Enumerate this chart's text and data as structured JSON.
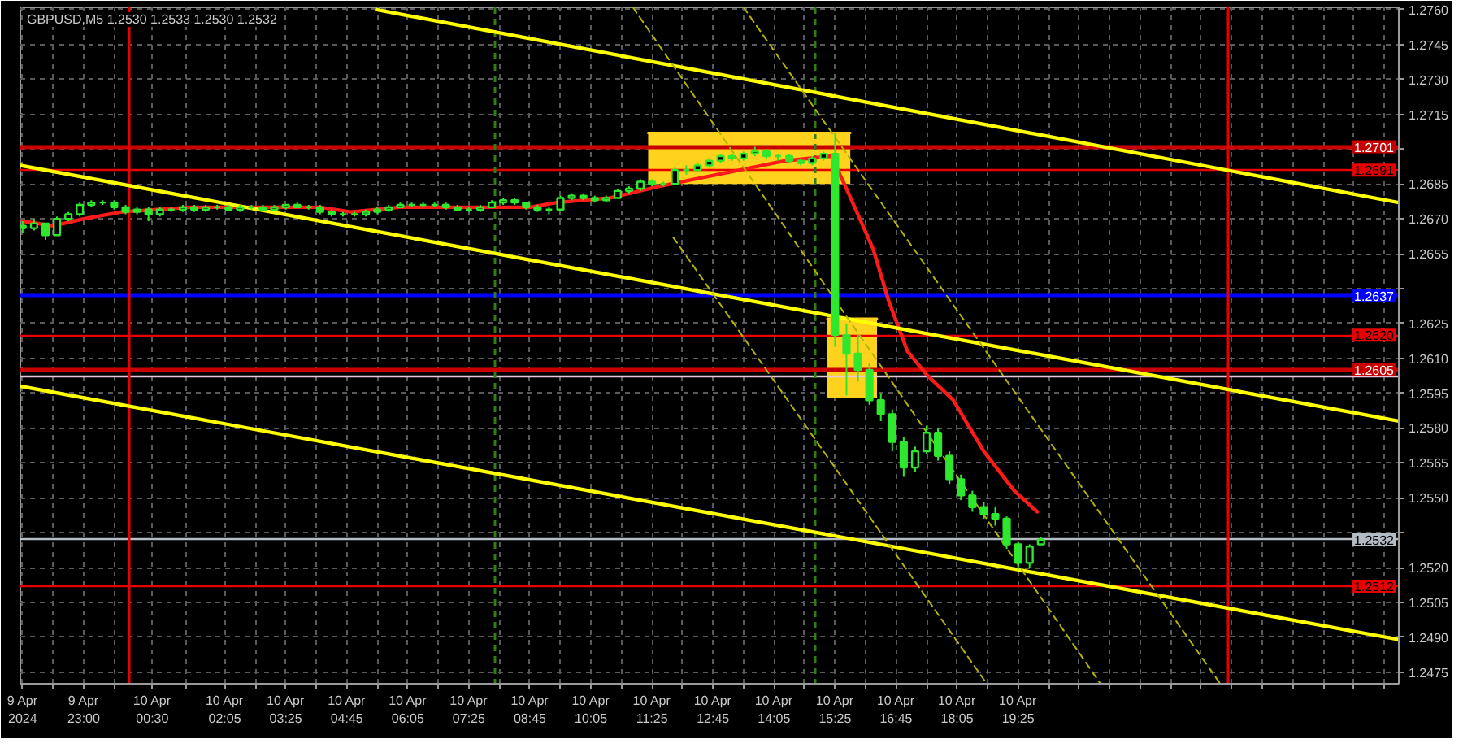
{
  "chart_data": {
    "type": "candlestick",
    "title": "GBPUSD,M5 1.2530 1.2533 1.2530 1.2532",
    "xlim": [
      "2024-04-09T21:37",
      "2024-04-11T03:44"
    ],
    "ylim": [
      1.247,
      1.2761
    ],
    "xticks": [
      {
        "value": "2024-04-09T21:40",
        "label": "9 Apr 2024"
      },
      {
        "value": "2024-04-09T22:20",
        "label": null
      },
      {
        "value": "2024-04-09T23:00",
        "label": "9 Apr 23:00"
      },
      {
        "value": "2024-04-09T23:40",
        "label": null
      },
      {
        "value": "2024-04-10T00:30",
        "label": "10 Apr 00:30"
      },
      {
        "value": "2024-04-10T01:15",
        "label": null
      },
      {
        "value": "2024-04-10T02:05",
        "label": "10 Apr 02:05"
      },
      {
        "value": "2024-04-10T02:45",
        "label": null
      },
      {
        "value": "2024-04-10T03:25",
        "label": "10 Apr 03:25"
      },
      {
        "value": "2024-04-10T04:05",
        "label": null
      },
      {
        "value": "2024-04-10T04:45",
        "label": "10 Apr 04:45"
      },
      {
        "value": "2024-04-10T05:25",
        "label": null
      },
      {
        "value": "2024-04-10T06:05",
        "label": "10 Apr 06:05"
      },
      {
        "value": "2024-04-10T06:45",
        "label": null
      },
      {
        "value": "2024-04-10T07:25",
        "label": "10 Apr 07:25"
      },
      {
        "value": "2024-04-10T08:05",
        "label": null
      },
      {
        "value": "2024-04-10T08:45",
        "label": "10 Apr 08:45"
      },
      {
        "value": "2024-04-10T09:25",
        "label": null
      },
      {
        "value": "2024-04-10T10:05",
        "label": "10 Apr 10:05"
      },
      {
        "value": "2024-04-10T10:45",
        "label": null
      },
      {
        "value": "2024-04-10T11:25",
        "label": "10 Apr 11:25"
      },
      {
        "value": "2024-04-10T12:05",
        "label": null
      },
      {
        "value": "2024-04-10T12:45",
        "label": "10 Apr 12:45"
      },
      {
        "value": "2024-04-10T13:25",
        "label": null
      },
      {
        "value": "2024-04-10T14:05",
        "label": "10 Apr 14:05"
      },
      {
        "value": "2024-04-10T14:45",
        "label": null
      },
      {
        "value": "2024-04-10T15:25",
        "label": "10 Apr 15:25"
      },
      {
        "value": "2024-04-10T16:05",
        "label": null
      },
      {
        "value": "2024-04-10T16:45",
        "label": "10 Apr 16:45"
      },
      {
        "value": "2024-04-10T17:25",
        "label": null
      },
      {
        "value": "2024-04-10T18:05",
        "label": "10 Apr 18:05"
      },
      {
        "value": "2024-04-10T18:45",
        "label": null
      },
      {
        "value": "2024-04-10T19:25",
        "label": "10 Apr 19:25"
      },
      {
        "value": "2024-04-10T20:05",
        "label": null
      },
      {
        "value": "2024-04-10T20:45",
        "label": null
      },
      {
        "value": "2024-04-10T21:25",
        "label": null
      },
      {
        "value": "2024-04-10T22:05",
        "label": null
      },
      {
        "value": "2024-04-10T22:45",
        "label": null
      },
      {
        "value": "2024-04-10T23:25",
        "label": null
      },
      {
        "value": "2024-04-11T00:05",
        "label": null
      },
      {
        "value": "2024-04-11T00:45",
        "label": null
      },
      {
        "value": "2024-04-11T01:25",
        "label": null
      },
      {
        "value": "2024-04-11T02:05",
        "label": null
      },
      {
        "value": "2024-04-11T02:45",
        "label": null
      },
      {
        "value": "2024-04-11T03:25",
        "label": null
      }
    ],
    "yticks": [
      {
        "value": 1.2475,
        "label": "1.2475"
      },
      {
        "value": 1.249,
        "label": "1.2490"
      },
      {
        "value": 1.2505,
        "label": "1.2505"
      },
      {
        "value": 1.252,
        "label": "1.2520"
      },
      {
        "value": 1.2535,
        "label": null
      },
      {
        "value": 1.255,
        "label": "1.2550"
      },
      {
        "value": 1.2565,
        "label": "1.2565"
      },
      {
        "value": 1.258,
        "label": "1.2580"
      },
      {
        "value": 1.2595,
        "label": "1.2595"
      },
      {
        "value": 1.261,
        "label": "1.2610"
      },
      {
        "value": 1.2625,
        "label": "1.2625"
      },
      {
        "value": 1.264,
        "label": null
      },
      {
        "value": 1.2655,
        "label": "1.2655"
      },
      {
        "value": 1.267,
        "label": "1.2670"
      },
      {
        "value": 1.2685,
        "label": "1.2685"
      },
      {
        "value": 1.27,
        "label": null
      },
      {
        "value": 1.2715,
        "label": "1.2715"
      },
      {
        "value": 1.273,
        "label": "1.2730"
      },
      {
        "value": 1.2745,
        "label": "1.2745"
      },
      {
        "value": 1.276,
        "label": "1.2760"
      }
    ],
    "grid": true,
    "color": "#2ee82e",
    "x": [
      "2024-04-09T21:40",
      "2024-04-09T21:55",
      "2024-04-09T22:10",
      "2024-04-09T22:25",
      "2024-04-09T22:40",
      "2024-04-09T22:55",
      "2024-04-09T23:10",
      "2024-04-09T23:25",
      "2024-04-09T23:40",
      "2024-04-09T23:55",
      "2024-04-10T00:10",
      "2024-04-10T00:25",
      "2024-04-10T00:40",
      "2024-04-10T00:55",
      "2024-04-10T01:10",
      "2024-04-10T01:25",
      "2024-04-10T01:40",
      "2024-04-10T01:55",
      "2024-04-10T02:10",
      "2024-04-10T02:25",
      "2024-04-10T02:40",
      "2024-04-10T02:55",
      "2024-04-10T03:10",
      "2024-04-10T03:25",
      "2024-04-10T03:40",
      "2024-04-10T03:55",
      "2024-04-10T04:10",
      "2024-04-10T04:25",
      "2024-04-10T04:40",
      "2024-04-10T04:55",
      "2024-04-10T05:10",
      "2024-04-10T05:25",
      "2024-04-10T05:40",
      "2024-04-10T05:55",
      "2024-04-10T06:10",
      "2024-04-10T06:25",
      "2024-04-10T06:40",
      "2024-04-10T06:55",
      "2024-04-10T07:10",
      "2024-04-10T07:25",
      "2024-04-10T07:40",
      "2024-04-10T07:55",
      "2024-04-10T08:10",
      "2024-04-10T08:25",
      "2024-04-10T08:40",
      "2024-04-10T08:55",
      "2024-04-10T09:10",
      "2024-04-10T09:25",
      "2024-04-10T09:40",
      "2024-04-10T09:55",
      "2024-04-10T10:10",
      "2024-04-10T10:25",
      "2024-04-10T10:40",
      "2024-04-10T10:55",
      "2024-04-10T11:10",
      "2024-04-10T11:25",
      "2024-04-10T11:40",
      "2024-04-10T11:55",
      "2024-04-10T12:10",
      "2024-04-10T12:25",
      "2024-04-10T12:40",
      "2024-04-10T12:55",
      "2024-04-10T13:10",
      "2024-04-10T13:25",
      "2024-04-10T13:40",
      "2024-04-10T13:55",
      "2024-04-10T14:10",
      "2024-04-10T14:25",
      "2024-04-10T14:40",
      "2024-04-10T14:55",
      "2024-04-10T15:10",
      "2024-04-10T15:25",
      "2024-04-10T15:40",
      "2024-04-10T15:55",
      "2024-04-10T16:10",
      "2024-04-10T16:25",
      "2024-04-10T16:40",
      "2024-04-10T16:55",
      "2024-04-10T17:10",
      "2024-04-10T17:25",
      "2024-04-10T17:40",
      "2024-04-10T17:55",
      "2024-04-10T18:10",
      "2024-04-10T18:25",
      "2024-04-10T18:40",
      "2024-04-10T18:55",
      "2024-04-10T19:10",
      "2024-04-10T19:25",
      "2024-04-10T19:40",
      "2024-04-10T19:55"
    ],
    "ohlc": [
      [
        1.2667,
        1.2669,
        1.2664,
        1.2666
      ],
      [
        1.2666,
        1.267,
        1.2665,
        1.2668
      ],
      [
        1.2668,
        1.2668,
        1.2661,
        1.2663
      ],
      [
        1.2663,
        1.2671,
        1.2663,
        1.267
      ],
      [
        1.267,
        1.2673,
        1.2669,
        1.2672
      ],
      [
        1.2672,
        1.2677,
        1.2671,
        1.2676
      ],
      [
        1.2676,
        1.2678,
        1.2675,
        1.2677
      ],
      [
        1.2677,
        1.2678,
        1.2676,
        1.2677
      ],
      [
        1.2677,
        1.2678,
        1.2674,
        1.2675
      ],
      [
        1.2675,
        1.2676,
        1.2672,
        1.2673
      ],
      [
        1.2673,
        1.2675,
        1.2672,
        1.2674
      ],
      [
        1.2674,
        1.2675,
        1.2669,
        1.2672
      ],
      [
        1.2672,
        1.2675,
        1.2671,
        1.2674
      ],
      [
        1.2674,
        1.2675,
        1.2673,
        1.2674
      ],
      [
        1.2674,
        1.2676,
        1.2673,
        1.2675
      ],
      [
        1.2675,
        1.2676,
        1.2673,
        1.2674
      ],
      [
        1.2674,
        1.2676,
        1.2673,
        1.2675
      ],
      [
        1.2675,
        1.2676,
        1.2674,
        1.2675
      ],
      [
        1.2675,
        1.2676,
        1.2674,
        1.2674
      ],
      [
        1.2674,
        1.2676,
        1.2673,
        1.2675
      ],
      [
        1.2675,
        1.2676,
        1.2674,
        1.2675
      ],
      [
        1.2675,
        1.2676,
        1.2674,
        1.2674
      ],
      [
        1.2674,
        1.2676,
        1.2674,
        1.2675
      ],
      [
        1.2675,
        1.2676,
        1.2674,
        1.2676
      ],
      [
        1.2676,
        1.2677,
        1.2675,
        1.2675
      ],
      [
        1.2675,
        1.2676,
        1.2674,
        1.2675
      ],
      [
        1.2675,
        1.2676,
        1.2672,
        1.2673
      ],
      [
        1.2673,
        1.2674,
        1.2671,
        1.2672
      ],
      [
        1.2672,
        1.2673,
        1.2671,
        1.2672
      ],
      [
        1.2672,
        1.2673,
        1.2671,
        1.2672
      ],
      [
        1.2672,
        1.2674,
        1.2671,
        1.2673
      ],
      [
        1.2673,
        1.2675,
        1.2672,
        1.2674
      ],
      [
        1.2674,
        1.2676,
        1.2673,
        1.2675
      ],
      [
        1.2675,
        1.2677,
        1.2675,
        1.2676
      ],
      [
        1.2676,
        1.2677,
        1.2675,
        1.2676
      ],
      [
        1.2676,
        1.2677,
        1.2675,
        1.2676
      ],
      [
        1.2676,
        1.2677,
        1.2675,
        1.2676
      ],
      [
        1.2676,
        1.2677,
        1.2674,
        1.2675
      ],
      [
        1.2675,
        1.2676,
        1.2674,
        1.2674
      ],
      [
        1.2674,
        1.2675,
        1.2673,
        1.2674
      ],
      [
        1.2674,
        1.2676,
        1.2673,
        1.2675
      ],
      [
        1.2675,
        1.2678,
        1.2675,
        1.2677
      ],
      [
        1.2677,
        1.2679,
        1.2676,
        1.2678
      ],
      [
        1.2678,
        1.2679,
        1.2676,
        1.2677
      ],
      [
        1.2677,
        1.2677,
        1.2674,
        1.2675
      ],
      [
        1.2675,
        1.2676,
        1.2673,
        1.2674
      ],
      [
        1.2674,
        1.2675,
        1.2672,
        1.2674
      ],
      [
        1.2674,
        1.268,
        1.2674,
        1.2679
      ],
      [
        1.2679,
        1.2681,
        1.2678,
        1.268
      ],
      [
        1.268,
        1.2681,
        1.2678,
        1.2679
      ],
      [
        1.2679,
        1.268,
        1.2677,
        1.2678
      ],
      [
        1.2678,
        1.268,
        1.2677,
        1.2679
      ],
      [
        1.2679,
        1.2683,
        1.2679,
        1.2682
      ],
      [
        1.2682,
        1.2684,
        1.2681,
        1.2683
      ],
      [
        1.2683,
        1.2687,
        1.2682,
        1.2686
      ],
      [
        1.2686,
        1.2687,
        1.2684,
        1.2685
      ],
      [
        1.2685,
        1.2686,
        1.2684,
        1.2685
      ],
      [
        1.2685,
        1.2692,
        1.2685,
        1.2691
      ],
      [
        1.2691,
        1.2693,
        1.2689,
        1.2691
      ],
      [
        1.2691,
        1.2694,
        1.269,
        1.2693
      ],
      [
        1.2693,
        1.2696,
        1.2692,
        1.2695
      ],
      [
        1.2695,
        1.2698,
        1.2694,
        1.2697
      ],
      [
        1.2697,
        1.2698,
        1.2695,
        1.2696
      ],
      [
        1.2696,
        1.2699,
        1.2695,
        1.2698
      ],
      [
        1.2698,
        1.2701,
        1.2697,
        1.2699
      ],
      [
        1.2699,
        1.27,
        1.2696,
        1.2697
      ],
      [
        1.2697,
        1.2698,
        1.2695,
        1.2697
      ],
      [
        1.2697,
        1.2698,
        1.2694,
        1.2695
      ],
      [
        1.2695,
        1.2696,
        1.2693,
        1.2694
      ],
      [
        1.2694,
        1.2697,
        1.2693,
        1.2696
      ],
      [
        1.2696,
        1.2699,
        1.2695,
        1.2698
      ],
      [
        1.2698,
        1.2707,
        1.2615,
        1.262
      ],
      [
        1.262,
        1.2625,
        1.2594,
        1.2612
      ],
      [
        1.2612,
        1.262,
        1.26,
        1.2605
      ],
      [
        1.2605,
        1.2608,
        1.259,
        1.2592
      ],
      [
        1.2592,
        1.2595,
        1.2583,
        1.2586
      ],
      [
        1.2586,
        1.2588,
        1.257,
        1.2574
      ],
      [
        1.2574,
        1.2576,
        1.2559,
        1.2563
      ],
      [
        1.2563,
        1.2572,
        1.2561,
        1.257
      ],
      [
        1.257,
        1.2581,
        1.2569,
        1.2578
      ],
      [
        1.2578,
        1.258,
        1.2566,
        1.2568
      ],
      [
        1.2568,
        1.257,
        1.2556,
        1.2558
      ],
      [
        1.2558,
        1.256,
        1.2549,
        1.2551
      ],
      [
        1.2551,
        1.2553,
        1.2544,
        1.2546
      ],
      [
        1.2546,
        1.2548,
        1.2541,
        1.2543
      ],
      [
        1.2543,
        1.2546,
        1.2538,
        1.2541
      ],
      [
        1.2541,
        1.2542,
        1.2528,
        1.253
      ],
      [
        1.253,
        1.2531,
        1.2519,
        1.2522
      ],
      [
        1.2522,
        1.253,
        1.252,
        1.2529
      ],
      [
        1.253,
        1.2533,
        1.253,
        1.2532
      ]
    ],
    "series": [
      {
        "type": "line",
        "color": "#ffd21e",
        "x": [
          "2024-04-10T11:20",
          "2024-04-10T15:45"
        ],
        "values": [
          1.2707,
          1.2707
        ],
        "lower": [
          1.2685,
          1.2685
        ],
        "upper": [
          1.2707,
          1.2707
        ]
      },
      {
        "type": "line",
        "color": "#ffd21e",
        "x": [
          "2024-04-10T15:15",
          "2024-04-10T16:20"
        ],
        "values": [
          1.2627,
          1.2627
        ],
        "lower": [
          1.2593,
          1.2593
        ],
        "upper": [
          1.2627,
          1.2627
        ]
      },
      {
        "type": "line",
        "color": "#ff1a1a",
        "x": [
          "2024-04-09T21:40",
          "2024-04-09T22:20",
          "2024-04-09T23:00",
          "2024-04-09T23:50",
          "2024-04-10T01:20",
          "2024-04-10T02:45",
          "2024-04-10T04:10",
          "2024-04-10T04:50",
          "2024-04-10T05:55",
          "2024-04-10T07:40",
          "2024-04-10T08:45",
          "2024-04-10T09:20",
          "2024-04-10T10:30",
          "2024-04-10T11:35",
          "2024-04-10T13:20",
          "2024-04-10T14:20",
          "2024-04-10T15:20",
          "2024-04-10T15:40",
          "2024-04-10T16:15",
          "2024-04-10T16:35",
          "2024-04-10T17:00",
          "2024-04-10T17:25",
          "2024-04-10T18:00",
          "2024-04-10T18:40",
          "2024-04-10T19:20",
          "2024-04-10T19:50"
        ],
        "values": [
          1.2669,
          1.2667,
          1.267,
          1.2673,
          1.2675,
          1.2675,
          1.2675,
          1.2673,
          1.2675,
          1.2675,
          1.2675,
          1.2677,
          1.2679,
          1.2684,
          1.2691,
          1.2695,
          1.2697,
          1.2683,
          1.2657,
          1.2635,
          1.2613,
          1.2603,
          1.2592,
          1.257,
          1.2553,
          1.2544
        ]
      },
      {
        "type": "line",
        "color": "#ffff00",
        "x": [
          "2024-04-10T05:24",
          "2024-04-11T03:44"
        ],
        "values": [
          1.276,
          1.2677
        ]
      },
      {
        "type": "line",
        "color": "#ffff00",
        "x": [
          "2024-04-09T21:37",
          "2024-04-11T03:44"
        ],
        "values": [
          1.2693,
          1.2583
        ]
      },
      {
        "type": "line",
        "color": "#ffff00",
        "x": [
          "2024-04-09T21:37",
          "2024-04-11T03:44"
        ],
        "values": [
          1.2598,
          1.2489
        ]
      },
      {
        "type": "line",
        "color": "#b4b400",
        "line_style": "dashed",
        "x": [
          "2024-04-10T11:00",
          "2024-04-10T21:13"
        ],
        "values": [
          1.2761,
          1.247
        ]
      },
      {
        "type": "line",
        "color": "#b4b400",
        "line_style": "dashed",
        "x": [
          "2024-04-10T11:53",
          "2024-04-10T18:44"
        ],
        "values": [
          1.2662,
          1.247
        ]
      },
      {
        "type": "line",
        "color": "#b4b400",
        "line_style": "dashed",
        "x": [
          "2024-04-10T13:25",
          "2024-04-10T23:50"
        ],
        "values": [
          1.2761,
          1.247
        ]
      }
    ],
    "ref_lines": [
      {
        "axis": "y",
        "value": 1.2701,
        "label": "1.2701",
        "color": "#c80000"
      },
      {
        "axis": "y",
        "value": 1.2691,
        "label": "1.2691",
        "color": "#e80000"
      },
      {
        "axis": "y",
        "value": 1.2637,
        "label": "1.2637",
        "color": "#0000ff"
      },
      {
        "axis": "y",
        "value": 1.262,
        "label": "1.2620",
        "color": "#e80000"
      },
      {
        "axis": "y",
        "value": 1.2605,
        "label": "1.2605",
        "color": "#c80000"
      },
      {
        "axis": "y",
        "value": 1.2602,
        "color": "#e6c8dc"
      },
      {
        "axis": "y",
        "value": 1.2532,
        "label": "1.2532",
        "color": "#b4bcc4"
      },
      {
        "axis": "y",
        "value": 1.2512,
        "label": "1.2512",
        "color": "#e80000"
      },
      {
        "axis": "x",
        "value": "2024-04-10T00:00",
        "color": "#e80000"
      },
      {
        "axis": "x",
        "value": "2024-04-11T00:00",
        "color": "#e80000"
      },
      {
        "axis": "x",
        "value": "2024-04-10T08:00",
        "color": "#2f7d14",
        "line_style": "dashed"
      },
      {
        "axis": "x",
        "value": "2024-04-10T15:00",
        "color": "#2f7d14",
        "line_style": "dashed"
      }
    ]
  }
}
